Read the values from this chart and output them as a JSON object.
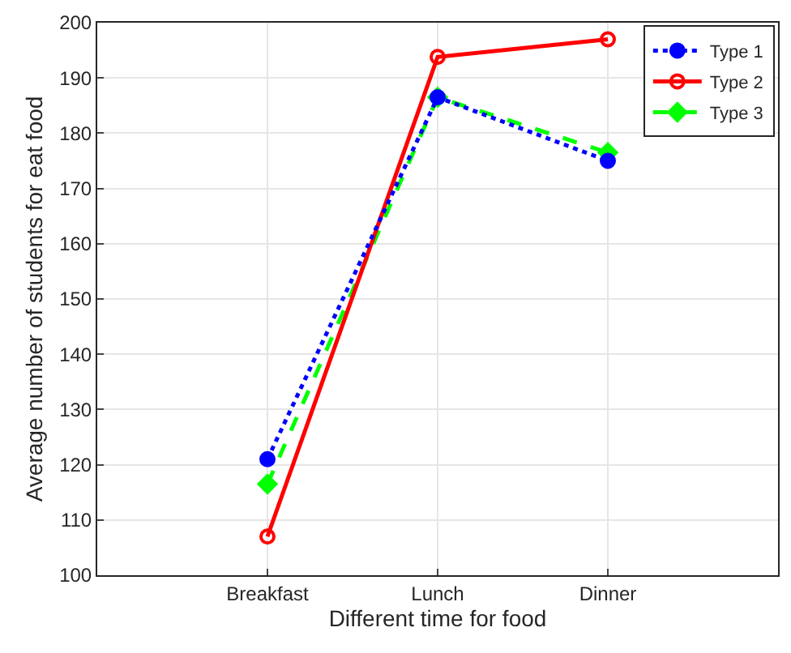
{
  "chart_data": {
    "type": "line",
    "xlabel": "Different time for food",
    "ylabel": "Average number of students for eat food",
    "categories": [
      "Breakfast",
      "Lunch",
      "Dinner"
    ],
    "series": [
      {
        "name": "Type 1",
        "color": "#0000ff",
        "values": [
          121,
          186.5,
          175
        ],
        "marker": "circle",
        "line_style": "dotted"
      },
      {
        "name": "Type 2",
        "color": "#ff0000",
        "values": [
          107,
          193.8,
          197
        ],
        "marker": "circle-open",
        "line_style": "solid"
      },
      {
        "name": "Type 3",
        "color": "#00ff00",
        "values": [
          116.5,
          186.5,
          176.5
        ],
        "marker": "diamond",
        "line_style": "dashed"
      }
    ],
    "ylim": [
      100,
      200
    ],
    "yticks": [
      100,
      110,
      120,
      130,
      140,
      150,
      160,
      170,
      180,
      190,
      200
    ],
    "grid": true,
    "legend": "top right"
  }
}
